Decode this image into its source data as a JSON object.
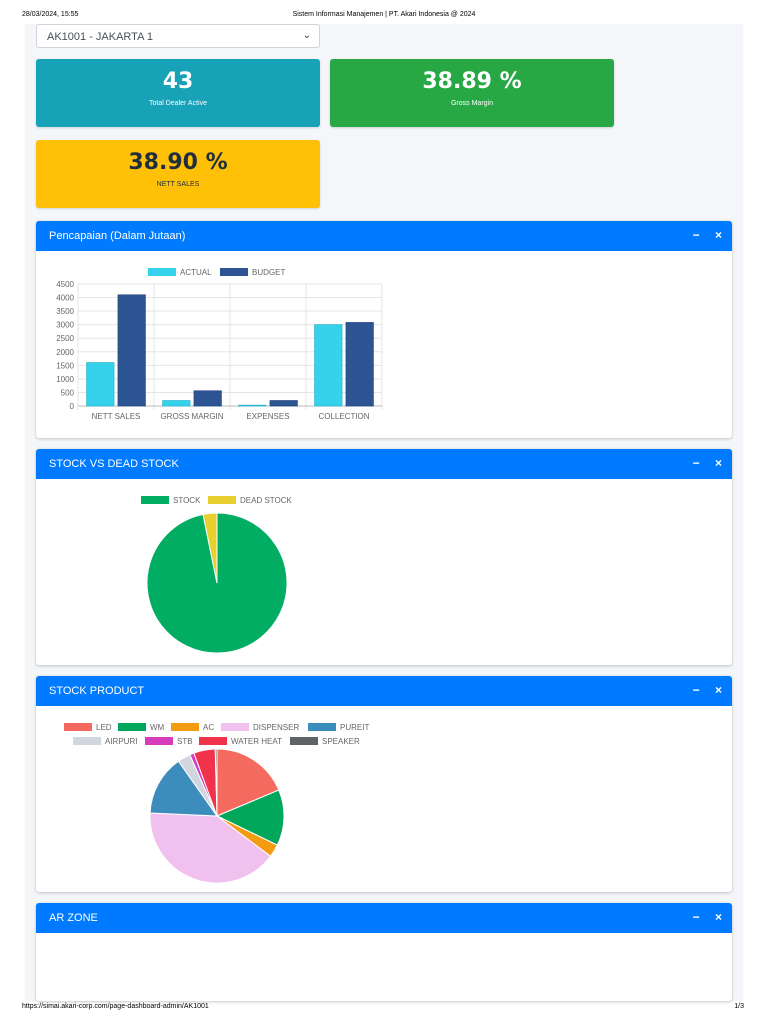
{
  "print": {
    "date": "28/03/2024, 15:55",
    "title": "Sistem Informasi Manajemen | PT. Akari Indonesia @ 2024",
    "url": "https://simai.akari-corp.com/page-dashboard-admin/AK1001",
    "page": "1/3"
  },
  "branch_select": {
    "value": "AK1001 - JAKARTA 1"
  },
  "stats": [
    {
      "value": "43",
      "label": "Total Dealer Active",
      "color": "#17a2b8"
    },
    {
      "value": "38.89 %",
      "label": "Gross Margin",
      "color": "#28a745"
    },
    {
      "value": "38.90 %",
      "label": "NETT SALES",
      "color": "#ffc107"
    }
  ],
  "cards": {
    "pencapaian": {
      "title": "Pencapaian (Dalam Jutaan)"
    },
    "stock_dead": {
      "title": "STOCK VS DEAD STOCK"
    },
    "stock_product": {
      "title": "STOCK PRODUCT"
    },
    "ar_zone": {
      "title": "AR ZONE"
    }
  },
  "tools": {
    "minimize": "−",
    "close": "×"
  },
  "chart_data": [
    {
      "type": "bar",
      "categories": [
        "NETT SALES",
        "GROSS MARGIN",
        "EXPENSES",
        "COLLECTION"
      ],
      "series": [
        {
          "name": "ACTUAL",
          "values": [
            1600,
            200,
            30,
            3000
          ],
          "color": "#36d1ea"
        },
        {
          "name": "BUDGET",
          "values": [
            4100,
            560,
            200,
            3080
          ],
          "color": "#2e5593"
        }
      ],
      "yticks": [
        0,
        500,
        1000,
        1500,
        2000,
        2500,
        3000,
        3500,
        4000,
        4500
      ],
      "ylim": [
        0,
        4500
      ],
      "legend": "top"
    },
    {
      "type": "pie",
      "labels": [
        "STOCK",
        "DEAD STOCK"
      ],
      "values": [
        96.8,
        3.2
      ],
      "colors": [
        "#00ad62",
        "#e8d031"
      ],
      "legend": "top"
    },
    {
      "type": "pie",
      "labels": [
        "LED",
        "WM",
        "AC",
        "DISPENSER",
        "PUREIT",
        "AIRPURI",
        "STB",
        "WATER HEAT",
        "SPEAKER"
      ],
      "values": [
        18,
        13,
        3,
        39,
        14,
        3,
        1,
        5,
        0.4
      ],
      "colors": [
        "#f46a5e",
        "#00a65a",
        "#f39c12",
        "#f0c0ee",
        "#3c8dbc",
        "#d2d6de",
        "#d63cbc",
        "#f0334b",
        "#5f6267"
      ],
      "legend": "top"
    }
  ]
}
